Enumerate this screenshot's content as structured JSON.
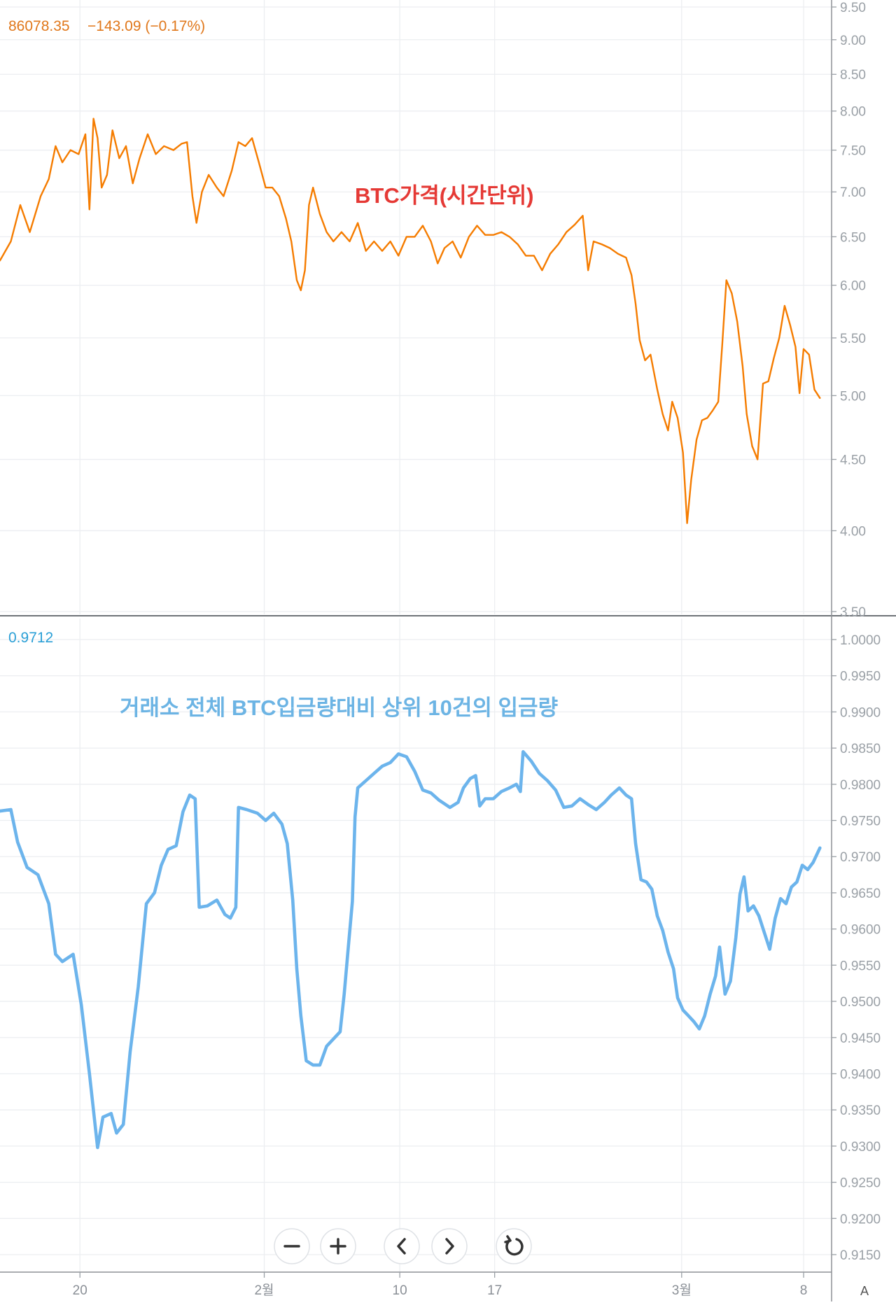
{
  "price_header": {
    "value": "86078.35",
    "change": "−143.09 (−0.17%)",
    "color": "#e0771a"
  },
  "ratio_header": {
    "value": "0.9712",
    "color": "#2a9fd6"
  },
  "axis_corner_label": "A",
  "controls": [
    {
      "name": "zoom-out-button",
      "icon": "minus-icon"
    },
    {
      "name": "zoom-in-button",
      "icon": "plus-icon"
    },
    {
      "name": "scroll-left-button",
      "icon": "chevron-left-icon"
    },
    {
      "name": "scroll-right-button",
      "icon": "chevron-right-icon"
    },
    {
      "name": "reset-chart-button",
      "icon": "reset-icon"
    }
  ],
  "chart_data": [
    {
      "type": "line",
      "annotation": "BTC가격(시간단위)",
      "annotation_color": "#e53935",
      "color": "#f57c00",
      "x_tick_labels": [
        "20",
        "2월",
        "10",
        "17",
        "3월",
        "8"
      ],
      "y_tick_labels": [
        "9.50",
        "9.00",
        "8.50",
        "8.00",
        "7.50",
        "7.00",
        "6.50",
        "6.00",
        "5.50",
        "5.00",
        "4.50",
        "4.00",
        "3.50"
      ],
      "ylim": [
        3.5,
        9.5
      ],
      "y_scale": "log",
      "grid": true,
      "points": [
        [
          0,
          6.25
        ],
        [
          0.8,
          6.45
        ],
        [
          1.5,
          6.85
        ],
        [
          2.2,
          6.55
        ],
        [
          3,
          6.95
        ],
        [
          3.6,
          7.15
        ],
        [
          4.1,
          7.55
        ],
        [
          4.6,
          7.35
        ],
        [
          5.2,
          7.5
        ],
        [
          5.8,
          7.45
        ],
        [
          6.3,
          7.7
        ],
        [
          6.6,
          6.8
        ],
        [
          6.9,
          7.9
        ],
        [
          7.2,
          7.65
        ],
        [
          7.5,
          7.05
        ],
        [
          7.9,
          7.2
        ],
        [
          8.3,
          7.75
        ],
        [
          8.8,
          7.4
        ],
        [
          9.3,
          7.55
        ],
        [
          9.8,
          7.1
        ],
        [
          10.3,
          7.4
        ],
        [
          10.9,
          7.7
        ],
        [
          11.5,
          7.45
        ],
        [
          12.1,
          7.55
        ],
        [
          12.8,
          7.5
        ],
        [
          13.4,
          7.58
        ],
        [
          13.8,
          7.6
        ],
        [
          14.2,
          6.95
        ],
        [
          14.5,
          6.65
        ],
        [
          14.9,
          7.0
        ],
        [
          15.4,
          7.2
        ],
        [
          16,
          7.05
        ],
        [
          16.5,
          6.95
        ],
        [
          17.1,
          7.25
        ],
        [
          17.6,
          7.6
        ],
        [
          18.1,
          7.55
        ],
        [
          18.6,
          7.65
        ],
        [
          19.1,
          7.35
        ],
        [
          19.6,
          7.05
        ],
        [
          20.1,
          7.05
        ],
        [
          20.6,
          6.95
        ],
        [
          21.1,
          6.7
        ],
        [
          21.5,
          6.45
        ],
        [
          21.9,
          6.05
        ],
        [
          22.2,
          5.95
        ],
        [
          22.5,
          6.15
        ],
        [
          22.8,
          6.85
        ],
        [
          23.1,
          7.05
        ],
        [
          23.6,
          6.75
        ],
        [
          24.1,
          6.55
        ],
        [
          24.6,
          6.45
        ],
        [
          25.2,
          6.55
        ],
        [
          25.8,
          6.45
        ],
        [
          26.4,
          6.65
        ],
        [
          27,
          6.35
        ],
        [
          27.6,
          6.45
        ],
        [
          28.2,
          6.35
        ],
        [
          28.8,
          6.45
        ],
        [
          29.4,
          6.3
        ],
        [
          30,
          6.5
        ],
        [
          30.6,
          6.5
        ],
        [
          31.2,
          6.62
        ],
        [
          31.8,
          6.45
        ],
        [
          32.3,
          6.22
        ],
        [
          32.8,
          6.38
        ],
        [
          33.4,
          6.45
        ],
        [
          34,
          6.28
        ],
        [
          34.6,
          6.5
        ],
        [
          35.2,
          6.62
        ],
        [
          35.8,
          6.52
        ],
        [
          36.4,
          6.52
        ],
        [
          37,
          6.55
        ],
        [
          37.6,
          6.5
        ],
        [
          38.2,
          6.42
        ],
        [
          38.8,
          6.3
        ],
        [
          39.4,
          6.3
        ],
        [
          40,
          6.15
        ],
        [
          40.6,
          6.32
        ],
        [
          41.2,
          6.42
        ],
        [
          41.8,
          6.55
        ],
        [
          42.4,
          6.63
        ],
        [
          43,
          6.73
        ],
        [
          43.4,
          6.15
        ],
        [
          43.8,
          6.45
        ],
        [
          44.4,
          6.42
        ],
        [
          45,
          6.38
        ],
        [
          45.6,
          6.32
        ],
        [
          46.2,
          6.28
        ],
        [
          46.6,
          6.1
        ],
        [
          46.9,
          5.82
        ],
        [
          47.2,
          5.48
        ],
        [
          47.6,
          5.3
        ],
        [
          48,
          5.35
        ],
        [
          48.5,
          5.05
        ],
        [
          48.9,
          4.85
        ],
        [
          49.3,
          4.72
        ],
        [
          49.6,
          4.95
        ],
        [
          50,
          4.82
        ],
        [
          50.4,
          4.55
        ],
        [
          50.7,
          4.05
        ],
        [
          51,
          4.35
        ],
        [
          51.4,
          4.65
        ],
        [
          51.8,
          4.8
        ],
        [
          52.2,
          4.82
        ],
        [
          52.6,
          4.88
        ],
        [
          53,
          4.95
        ],
        [
          53.3,
          5.45
        ],
        [
          53.6,
          6.05
        ],
        [
          54,
          5.92
        ],
        [
          54.4,
          5.65
        ],
        [
          54.8,
          5.25
        ],
        [
          55.1,
          4.85
        ],
        [
          55.5,
          4.6
        ],
        [
          55.9,
          4.5
        ],
        [
          56.3,
          5.1
        ],
        [
          56.7,
          5.12
        ],
        [
          57.1,
          5.32
        ],
        [
          57.5,
          5.5
        ],
        [
          57.9,
          5.8
        ],
        [
          58.3,
          5.62
        ],
        [
          58.7,
          5.42
        ],
        [
          59,
          5.02
        ],
        [
          59.3,
          5.4
        ],
        [
          59.7,
          5.35
        ],
        [
          60.1,
          5.05
        ],
        [
          60.5,
          4.98
        ]
      ]
    },
    {
      "type": "line",
      "annotation": "거래소 전체 BTC입금량대비 상위 10건의 입금량",
      "annotation_color": "#6cb4e4",
      "color": "#6cb4ec",
      "x_tick_labels": [
        "20",
        "2월",
        "10",
        "17",
        "3월",
        "8"
      ],
      "y_tick_labels": [
        "1.0000",
        "0.9950",
        "0.9900",
        "0.9850",
        "0.9800",
        "0.9750",
        "0.9700",
        "0.9650",
        "0.9600",
        "0.9550",
        "0.9500",
        "0.9450",
        "0.9400",
        "0.9350",
        "0.9300",
        "0.9250",
        "0.9200",
        "0.9150"
      ],
      "ylim": [
        0.9141,
        1.0004
      ],
      "grid": true,
      "points": [
        [
          0,
          0.9763
        ],
        [
          0.8,
          0.9765
        ],
        [
          1.3,
          0.972
        ],
        [
          2,
          0.9685
        ],
        [
          2.8,
          0.9675
        ],
        [
          3.6,
          0.9635
        ],
        [
          4.1,
          0.9565
        ],
        [
          4.6,
          0.9555
        ],
        [
          5.4,
          0.9565
        ],
        [
          6,
          0.9495
        ],
        [
          6.6,
          0.94
        ],
        [
          7.2,
          0.9298
        ],
        [
          7.6,
          0.934
        ],
        [
          8.2,
          0.9345
        ],
        [
          8.6,
          0.9318
        ],
        [
          9.1,
          0.933
        ],
        [
          9.6,
          0.943
        ],
        [
          10.2,
          0.952
        ],
        [
          10.8,
          0.9635
        ],
        [
          11.4,
          0.965
        ],
        [
          11.9,
          0.9688
        ],
        [
          12.4,
          0.971
        ],
        [
          13,
          0.9715
        ],
        [
          13.5,
          0.9762
        ],
        [
          14,
          0.9785
        ],
        [
          14.4,
          0.978
        ],
        [
          14.7,
          0.963
        ],
        [
          15.3,
          0.9632
        ],
        [
          16,
          0.964
        ],
        [
          16.6,
          0.962
        ],
        [
          17,
          0.9615
        ],
        [
          17.4,
          0.963
        ],
        [
          17.6,
          0.9768
        ],
        [
          18.2,
          0.9765
        ],
        [
          19,
          0.976
        ],
        [
          19.6,
          0.975
        ],
        [
          20.2,
          0.976
        ],
        [
          20.8,
          0.9745
        ],
        [
          21.2,
          0.9718
        ],
        [
          21.6,
          0.964
        ],
        [
          21.9,
          0.9545
        ],
        [
          22.2,
          0.948
        ],
        [
          22.6,
          0.9418
        ],
        [
          23.1,
          0.9412
        ],
        [
          23.6,
          0.9412
        ],
        [
          24.1,
          0.9438
        ],
        [
          24.6,
          0.9448
        ],
        [
          25.1,
          0.9458
        ],
        [
          25.4,
          0.951
        ],
        [
          25.7,
          0.9575
        ],
        [
          26,
          0.9638
        ],
        [
          26.2,
          0.9755
        ],
        [
          26.4,
          0.9795
        ],
        [
          27,
          0.9805
        ],
        [
          27.6,
          0.9815
        ],
        [
          28.2,
          0.9825
        ],
        [
          28.8,
          0.983
        ],
        [
          29.4,
          0.9842
        ],
        [
          30,
          0.9838
        ],
        [
          30.6,
          0.9818
        ],
        [
          31.2,
          0.9792
        ],
        [
          31.8,
          0.9788
        ],
        [
          32.4,
          0.9778
        ],
        [
          33.2,
          0.9768
        ],
        [
          33.8,
          0.9775
        ],
        [
          34.2,
          0.9795
        ],
        [
          34.7,
          0.9808
        ],
        [
          35.1,
          0.9812
        ],
        [
          35.4,
          0.977
        ],
        [
          35.8,
          0.978
        ],
        [
          36.4,
          0.978
        ],
        [
          37,
          0.979
        ],
        [
          37.6,
          0.9795
        ],
        [
          38.1,
          0.98
        ],
        [
          38.4,
          0.979
        ],
        [
          38.6,
          0.9845
        ],
        [
          39.2,
          0.9832
        ],
        [
          39.8,
          0.9815
        ],
        [
          40.4,
          0.9805
        ],
        [
          41,
          0.9792
        ],
        [
          41.6,
          0.9768
        ],
        [
          42.2,
          0.977
        ],
        [
          42.8,
          0.978
        ],
        [
          43.4,
          0.9772
        ],
        [
          44,
          0.9765
        ],
        [
          44.6,
          0.9775
        ],
        [
          45.1,
          0.9785
        ],
        [
          45.7,
          0.9795
        ],
        [
          46.2,
          0.9785
        ],
        [
          46.6,
          0.978
        ],
        [
          46.9,
          0.9718
        ],
        [
          47.3,
          0.9668
        ],
        [
          47.7,
          0.9665
        ],
        [
          48.1,
          0.9655
        ],
        [
          48.5,
          0.9618
        ],
        [
          48.9,
          0.9598
        ],
        [
          49.3,
          0.9568
        ],
        [
          49.7,
          0.9545
        ],
        [
          50,
          0.9505
        ],
        [
          50.4,
          0.9488
        ],
        [
          50.8,
          0.948
        ],
        [
          51.2,
          0.9472
        ],
        [
          51.6,
          0.9462
        ],
        [
          52,
          0.948
        ],
        [
          52.4,
          0.951
        ],
        [
          52.8,
          0.9535
        ],
        [
          53.1,
          0.9575
        ],
        [
          53.5,
          0.951
        ],
        [
          53.9,
          0.9528
        ],
        [
          54.3,
          0.9588
        ],
        [
          54.6,
          0.9648
        ],
        [
          54.9,
          0.9672
        ],
        [
          55.2,
          0.9625
        ],
        [
          55.6,
          0.9632
        ],
        [
          56,
          0.9618
        ],
        [
          56.4,
          0.9595
        ],
        [
          56.8,
          0.9572
        ],
        [
          57.2,
          0.9615
        ],
        [
          57.6,
          0.9642
        ],
        [
          58,
          0.9635
        ],
        [
          58.4,
          0.9658
        ],
        [
          58.8,
          0.9665
        ],
        [
          59.2,
          0.9688
        ],
        [
          59.6,
          0.9682
        ],
        [
          60,
          0.9692
        ],
        [
          60.5,
          0.9712
        ]
      ]
    }
  ]
}
